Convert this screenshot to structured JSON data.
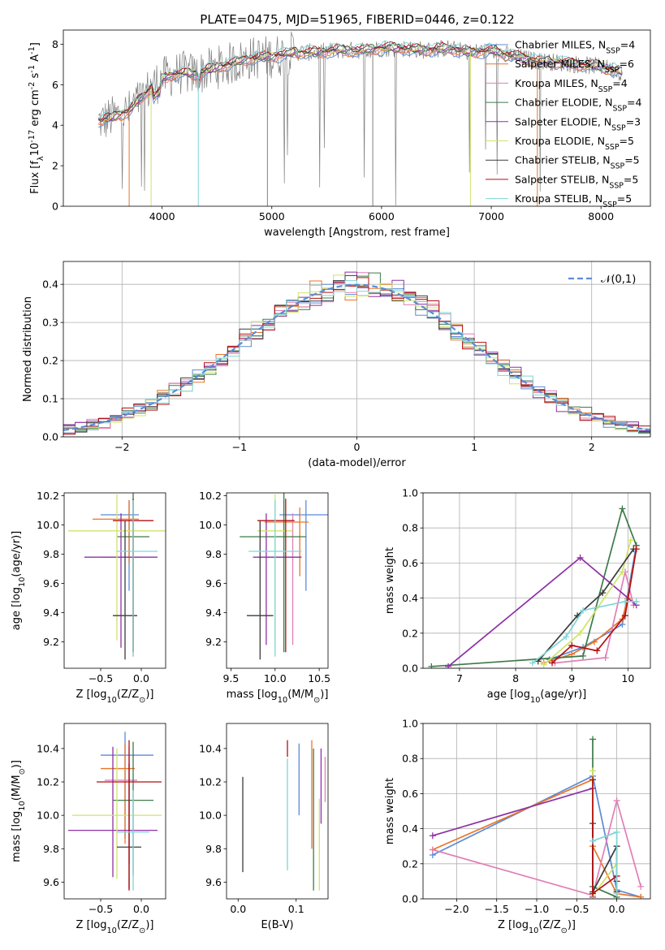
{
  "figure": {
    "title": "PLATE=0475, MJD=51965, FIBERID=0446, z=0.122"
  },
  "colors": {
    "chabrier_miles": "#5b8bd6",
    "salpeter_miles": "#e8752a",
    "kroupa_miles": "#e17fb6",
    "chabrier_elodie": "#3e7a49",
    "salpeter_elodie": "#8e31a6",
    "kroupa_elodie": "#cfe36b",
    "chabrier_stelib": "#3b3b3b",
    "salpeter_stelib": "#b50e12",
    "kroupa_stelib": "#7fd6d6",
    "data_grey": "#808080",
    "normal_curve": "#5b8bd6"
  },
  "chart_data": [
    {
      "id": "spectrum",
      "type": "line",
      "xlabel": "wavelength [Angstrom, rest frame]",
      "ylabel": "Flux [f$_\\lambda$10$^{-17}$ erg cm$^{-2}$ s$^{-1}$ A$^{-1}$]",
      "xlim": [
        3100,
        8450
      ],
      "ylim": [
        0,
        8.7
      ],
      "xticks": [
        4000,
        5000,
        6000,
        7000,
        8000
      ],
      "yticks": [
        0,
        2,
        4,
        6,
        8
      ],
      "grid": false,
      "legend_position": "upper right",
      "continuum": {
        "x": [
          3450,
          3600,
          3700,
          3800,
          3900,
          4000,
          4100,
          4200,
          4300,
          4400,
          4600,
          4800,
          5000,
          5200,
          5400,
          5600,
          5800,
          6000,
          6200,
          6400,
          6600,
          6800,
          7000,
          7200,
          7400,
          7600,
          7800,
          8000,
          8200
        ],
        "y": [
          4.2,
          4.5,
          4.7,
          5.3,
          5.9,
          6.3,
          6.5,
          6.6,
          6.5,
          6.7,
          7.0,
          7.3,
          7.4,
          7.6,
          7.6,
          7.7,
          7.7,
          7.8,
          7.8,
          7.7,
          7.8,
          7.6,
          7.7,
          7.4,
          7.2,
          7.1,
          7.0,
          6.9,
          6.6
        ]
      },
      "series": [
        {
          "name": "Chabrier MILES, N$_{SSP}$=4",
          "color_key": "chabrier_miles"
        },
        {
          "name": "Salpeter MILES, N$_{SSP}$=6",
          "color_key": "salpeter_miles"
        },
        {
          "name": "Kroupa MILES, N$_{SSP}$=4",
          "color_key": "kroupa_miles"
        },
        {
          "name": "Chabrier ELODIE, N$_{SSP}$=4",
          "color_key": "chabrier_elodie"
        },
        {
          "name": "Salpeter ELODIE, N$_{SSP}$=3",
          "color_key": "salpeter_elodie"
        },
        {
          "name": "Kroupa ELODIE, N$_{SSP}$=5",
          "color_key": "kroupa_elodie"
        },
        {
          "name": "Chabrier STELIB, N$_{SSP}$=5",
          "color_key": "chabrier_stelib"
        },
        {
          "name": "Salpeter STELIB, N$_{SSP}$=5",
          "color_key": "salpeter_stelib"
        },
        {
          "name": "Kroupa STELIB, N$_{SSP}$=5",
          "color_key": "kroupa_stelib"
        }
      ]
    },
    {
      "id": "residuals",
      "type": "histogram",
      "xlabel": "(data-model)/error",
      "ylabel": "Normed distribution",
      "xlim": [
        -2.5,
        2.5
      ],
      "ylim": [
        0,
        0.46
      ],
      "xticks": [
        -2,
        -1,
        0,
        1,
        2
      ],
      "yticks": [
        0.0,
        0.1,
        0.2,
        0.3,
        0.4
      ],
      "grid": true,
      "legend_position": "upper right",
      "reference_curve": {
        "name": "$\\mathcal{N}(0,1)$",
        "mean": 0,
        "sigma": 1
      },
      "bin_edges_start": -2.6,
      "bin_width": 0.1,
      "bins": 52
    },
    {
      "id": "age_vs_Z",
      "type": "errorbar",
      "xlabel": "Z [log$_{10}$(Z/Z$_\\odot$)]",
      "ylabel": "age  [log$_{10}$(age/yr)]",
      "xlim": [
        -0.95,
        0.3
      ],
      "ylim": [
        9.02,
        10.22
      ],
      "xticks": [
        -0.5,
        0.0
      ],
      "yticks": [
        9.2,
        9.4,
        9.6,
        9.8,
        10.0,
        10.2
      ],
      "points": [
        {
          "color_key": "chabrier_miles",
          "x": -0.15,
          "xerr": [
            0.35,
            0.12
          ],
          "y": 10.07,
          "yerr": [
            0.52,
            0.1
          ]
        },
        {
          "color_key": "salpeter_miles",
          "x": -0.15,
          "xerr": [
            0.45,
            0.12
          ],
          "y": 10.04,
          "yerr": [
            0.3,
            0.13
          ]
        },
        {
          "color_key": "kroupa_miles",
          "x": -0.1,
          "xerr": [
            0.4,
            0.1
          ],
          "y": 9.78,
          "yerr": [
            0.68,
            0.3
          ]
        },
        {
          "color_key": "chabrier_elodie",
          "x": -0.1,
          "xerr": [
            0.2,
            0.2
          ],
          "y": 9.92,
          "yerr": [
            0.79,
            0.3
          ]
        },
        {
          "color_key": "salpeter_elodie",
          "x": -0.25,
          "xerr": [
            0.45,
            0.45
          ],
          "y": 9.78,
          "yerr": [
            0.62,
            0.3
          ]
        },
        {
          "color_key": "kroupa_elodie",
          "x": -0.3,
          "xerr": [
            0.6,
            0.6
          ],
          "y": 9.96,
          "yerr": [
            0.75,
            0.25
          ]
        },
        {
          "color_key": "chabrier_stelib",
          "x": -0.2,
          "xerr": [
            0.15,
            0.15
          ],
          "y": 9.38,
          "yerr": [
            0.3,
            0.65
          ]
        },
        {
          "color_key": "salpeter_stelib",
          "x": -0.1,
          "xerr": [
            0.25,
            0.25
          ],
          "y": 10.03,
          "yerr": [
            0.9,
            0.15
          ]
        },
        {
          "color_key": "kroupa_stelib",
          "x": -0.1,
          "xerr": [
            0.2,
            0.3
          ],
          "y": 9.82,
          "yerr": [
            0.72,
            0.35
          ]
        }
      ]
    },
    {
      "id": "age_vs_mass",
      "type": "errorbar",
      "xlabel": "mass [log$_{10}$(M/M$_\\odot$)]",
      "ylabel": "",
      "xlim": [
        9.45,
        10.6
      ],
      "ylim": [
        9.02,
        10.22
      ],
      "xticks": [
        9.5,
        10.0,
        10.5
      ],
      "yticks": [
        9.2,
        9.4,
        9.6,
        9.8,
        10.0,
        10.2
      ],
      "points": [
        {
          "color_key": "chabrier_miles",
          "x": 10.35,
          "xerr": [
            0.3,
            0.25
          ],
          "y": 10.07,
          "yerr": [
            0.52,
            0.1
          ]
        },
        {
          "color_key": "salpeter_miles",
          "x": 10.28,
          "xerr": [
            0.4,
            0.1
          ],
          "y": 10.02,
          "yerr": [
            0.37,
            0.1
          ]
        },
        {
          "color_key": "kroupa_miles",
          "x": 10.2,
          "xerr": [
            0.4,
            0.1
          ],
          "y": 9.78,
          "yerr": [
            0.6,
            0.3
          ]
        },
        {
          "color_key": "chabrier_elodie",
          "x": 10.1,
          "xerr": [
            0.5,
            0.25
          ],
          "y": 9.92,
          "yerr": [
            0.79,
            0.3
          ]
        },
        {
          "color_key": "salpeter_elodie",
          "x": 9.9,
          "xerr": [
            0.15,
            0.4
          ],
          "y": 9.78,
          "yerr": [
            0.6,
            0.3
          ]
        },
        {
          "color_key": "kroupa_elodie",
          "x": 10.0,
          "xerr": [
            0.2,
            0.2
          ],
          "y": 9.96,
          "yerr": [
            0.75,
            0.25
          ]
        },
        {
          "color_key": "chabrier_stelib",
          "x": 9.83,
          "xerr": [
            0.15,
            0.15
          ],
          "y": 9.38,
          "yerr": [
            0.3,
            0.65
          ]
        },
        {
          "color_key": "salpeter_stelib",
          "x": 10.12,
          "xerr": [
            0.32,
            0.1
          ],
          "y": 10.03,
          "yerr": [
            0.9,
            0.15
          ]
        },
        {
          "color_key": "kroupa_stelib",
          "x": 10.0,
          "xerr": [
            0.3,
            0.3
          ],
          "y": 9.82,
          "yerr": [
            0.72,
            0.35
          ]
        }
      ]
    },
    {
      "id": "massweight_vs_age",
      "type": "line",
      "xlabel": "age  [log$_{10}$(age/yr)]",
      "ylabel": "mass weight",
      "xlim": [
        6.35,
        10.4
      ],
      "ylim": [
        0,
        1.0
      ],
      "xticks": [
        7,
        8,
        9,
        10
      ],
      "yticks": [
        0.0,
        0.2,
        0.4,
        0.6,
        0.8,
        1.0
      ],
      "grid": true,
      "series": [
        {
          "color_key": "chabrier_miles",
          "x": [
            8.6,
            9.2,
            9.9,
            10.15
          ],
          "y": [
            0.05,
            0.12,
            0.25,
            0.7
          ]
        },
        {
          "color_key": "salpeter_miles",
          "x": [
            8.5,
            9.0,
            9.4,
            9.9,
            10.0,
            10.15
          ],
          "y": [
            0.03,
            0.08,
            0.15,
            0.28,
            0.4,
            0.68
          ]
        },
        {
          "color_key": "kroupa_miles",
          "x": [
            8.7,
            9.6,
            9.95,
            10.1
          ],
          "y": [
            0.03,
            0.06,
            0.55,
            0.36
          ]
        },
        {
          "color_key": "chabrier_elodie",
          "x": [
            6.5,
            9.2,
            9.9,
            10.15
          ],
          "y": [
            0.01,
            0.07,
            0.91,
            0.7
          ]
        },
        {
          "color_key": "salpeter_elodie",
          "x": [
            6.8,
            9.15,
            10.15
          ],
          "y": [
            0.01,
            0.63,
            0.36
          ]
        },
        {
          "color_key": "kroupa_elodie",
          "x": [
            8.5,
            9.15,
            9.9,
            10.05
          ],
          "y": [
            0.02,
            0.2,
            0.55,
            0.73
          ]
        },
        {
          "color_key": "chabrier_stelib",
          "x": [
            8.4,
            9.1,
            9.55,
            10.1
          ],
          "y": [
            0.04,
            0.3,
            0.43,
            0.68
          ]
        },
        {
          "color_key": "salpeter_stelib",
          "x": [
            8.65,
            9.0,
            9.45,
            9.95,
            10.15
          ],
          "y": [
            0.03,
            0.13,
            0.1,
            0.3,
            0.68
          ]
        },
        {
          "color_key": "kroupa_stelib",
          "x": [
            8.3,
            8.9,
            9.2,
            9.95,
            10.15
          ],
          "y": [
            0.03,
            0.18,
            0.33,
            0.38,
            0.38
          ]
        }
      ]
    },
    {
      "id": "mass_vs_Z",
      "type": "errorbar",
      "xlabel": "Z [log$_{10}$(Z/Z$_\\odot$)]",
      "ylabel": "mass [log$_{10}$(M/M$_\\odot$)]",
      "xlim": [
        -0.95,
        0.3
      ],
      "ylim": [
        9.5,
        10.55
      ],
      "xticks": [
        -0.5,
        0.0
      ],
      "yticks": [
        9.6,
        9.8,
        10.0,
        10.2,
        10.4
      ],
      "points": [
        {
          "color_key": "chabrier_miles",
          "x": -0.2,
          "xerr": [
            0.3,
            0.35
          ],
          "y": 10.36,
          "yerr": [
            0.5,
            0.14
          ]
        },
        {
          "color_key": "salpeter_miles",
          "x": -0.2,
          "xerr": [
            0.3,
            0.12
          ],
          "y": 10.28,
          "yerr": [
            0.45,
            0.15
          ]
        },
        {
          "color_key": "kroupa_miles",
          "x": -0.15,
          "xerr": [
            0.3,
            0.1
          ],
          "y": 10.21,
          "yerr": [
            0.5,
            0.2
          ]
        },
        {
          "color_key": "chabrier_elodie",
          "x": -0.1,
          "xerr": [
            0.25,
            0.25
          ],
          "y": 10.09,
          "yerr": [
            0.45,
            0.35
          ]
        },
        {
          "color_key": "salpeter_elodie",
          "x": -0.35,
          "xerr": [
            0.55,
            0.55
          ],
          "y": 9.91,
          "yerr": [
            0.28,
            0.5
          ]
        },
        {
          "color_key": "kroupa_elodie",
          "x": -0.3,
          "xerr": [
            0.55,
            0.55
          ],
          "y": 10.0,
          "yerr": [
            0.38,
            0.4
          ]
        },
        {
          "color_key": "chabrier_stelib",
          "x": -0.15,
          "xerr": [
            0.15,
            0.15
          ],
          "y": 9.81,
          "yerr": [
            0.25,
            0.5
          ]
        },
        {
          "color_key": "salpeter_stelib",
          "x": -0.15,
          "xerr": [
            0.4,
            0.4
          ],
          "y": 10.2,
          "yerr": [
            0.65,
            0.25
          ]
        },
        {
          "color_key": "kroupa_stelib",
          "x": -0.1,
          "xerr": [
            0.2,
            0.2
          ],
          "y": 9.9,
          "yerr": [
            0.35,
            0.25
          ]
        }
      ]
    },
    {
      "id": "mass_vs_EBV",
      "type": "errorbar",
      "xlabel": "E(B-V)",
      "ylabel": "",
      "xlim": [
        -0.02,
        0.155
      ],
      "ylim": [
        9.5,
        10.55
      ],
      "xticks": [
        0.0,
        0.1
      ],
      "yticks": [
        9.6,
        9.8,
        10.0,
        10.2,
        10.4
      ],
      "points": [
        {
          "color_key": "chabrier_miles",
          "x": 0.105,
          "y": 10.22,
          "yerr": [
            0.22,
            0.21
          ]
        },
        {
          "color_key": "salpeter_miles",
          "x": 0.127,
          "y": 10.12,
          "yerr": [
            0.32,
            0.33
          ]
        },
        {
          "color_key": "kroupa_miles",
          "x": 0.15,
          "y": 10.2,
          "yerr": [
            0.12,
            0.15
          ]
        },
        {
          "color_key": "chabrier_elodie",
          "x": 0.13,
          "y": 10.0,
          "yerr": [
            0.45,
            0.4
          ]
        },
        {
          "color_key": "salpeter_elodie",
          "x": 0.143,
          "y": 10.3,
          "yerr": [
            0.35,
            0.1
          ]
        },
        {
          "color_key": "kroupa_elodie",
          "x": 0.14,
          "y": 9.75,
          "yerr": [
            0.2,
            0.35
          ]
        },
        {
          "color_key": "chabrier_stelib",
          "x": 0.008,
          "y": 9.94,
          "yerr": [
            0.28,
            0.29
          ]
        },
        {
          "color_key": "salpeter_stelib",
          "x": 0.085,
          "y": 10.4,
          "yerr": [
            0.05,
            0.05
          ]
        },
        {
          "color_key": "kroupa_stelib",
          "x": 0.085,
          "y": 10.01,
          "yerr": [
            0.34,
            0.33
          ]
        }
      ]
    },
    {
      "id": "massweight_vs_Z",
      "type": "line",
      "xlabel": "Z [log$_{10}$(Z/Z$_\\odot$)]",
      "ylabel": "mass weight",
      "xlim": [
        -2.42,
        0.42
      ],
      "ylim": [
        0,
        1.0
      ],
      "xticks": [
        -2.0,
        -1.5,
        -1.0,
        -0.5,
        0.0
      ],
      "yticks": [
        0.0,
        0.2,
        0.4,
        0.6,
        0.8,
        1.0
      ],
      "grid": true,
      "series": [
        {
          "color_key": "chabrier_miles",
          "x": [
            -2.3,
            -0.3,
            0.0,
            0.3
          ],
          "y": [
            0.25,
            0.7,
            0.05,
            0.01
          ]
        },
        {
          "color_key": "salpeter_miles",
          "x": [
            -2.3,
            -0.3,
            -0.3,
            0.0,
            0.3
          ],
          "y": [
            0.28,
            0.68,
            0.3,
            0.03,
            0.01
          ]
        },
        {
          "color_key": "kroupa_miles",
          "x": [
            -2.3,
            -0.3,
            0.0,
            0.3
          ],
          "y": [
            0.28,
            0.02,
            0.56,
            0.07
          ]
        },
        {
          "color_key": "chabrier_elodie",
          "x": [
            -0.3,
            -0.3,
            0.0
          ],
          "y": [
            0.91,
            0.07,
            0.01
          ]
        },
        {
          "color_key": "salpeter_elodie",
          "x": [
            -2.3,
            -0.3,
            -0.3
          ],
          "y": [
            0.36,
            0.63,
            0.01
          ]
        },
        {
          "color_key": "kroupa_elodie",
          "x": [
            -0.3,
            -0.3,
            0.0
          ],
          "y": [
            0.73,
            0.02,
            0.2
          ]
        },
        {
          "color_key": "chabrier_stelib",
          "x": [
            -0.3,
            -0.3,
            0.0,
            0.0
          ],
          "y": [
            0.43,
            0.04,
            0.3,
            0.04
          ]
        },
        {
          "color_key": "salpeter_stelib",
          "x": [
            -0.3,
            -0.3,
            0.0,
            0.0
          ],
          "y": [
            0.68,
            0.03,
            0.13,
            0.1
          ]
        },
        {
          "color_key": "kroupa_stelib",
          "x": [
            -0.3,
            0.0,
            0.0
          ],
          "y": [
            0.33,
            0.38,
            0.03
          ]
        }
      ]
    }
  ]
}
